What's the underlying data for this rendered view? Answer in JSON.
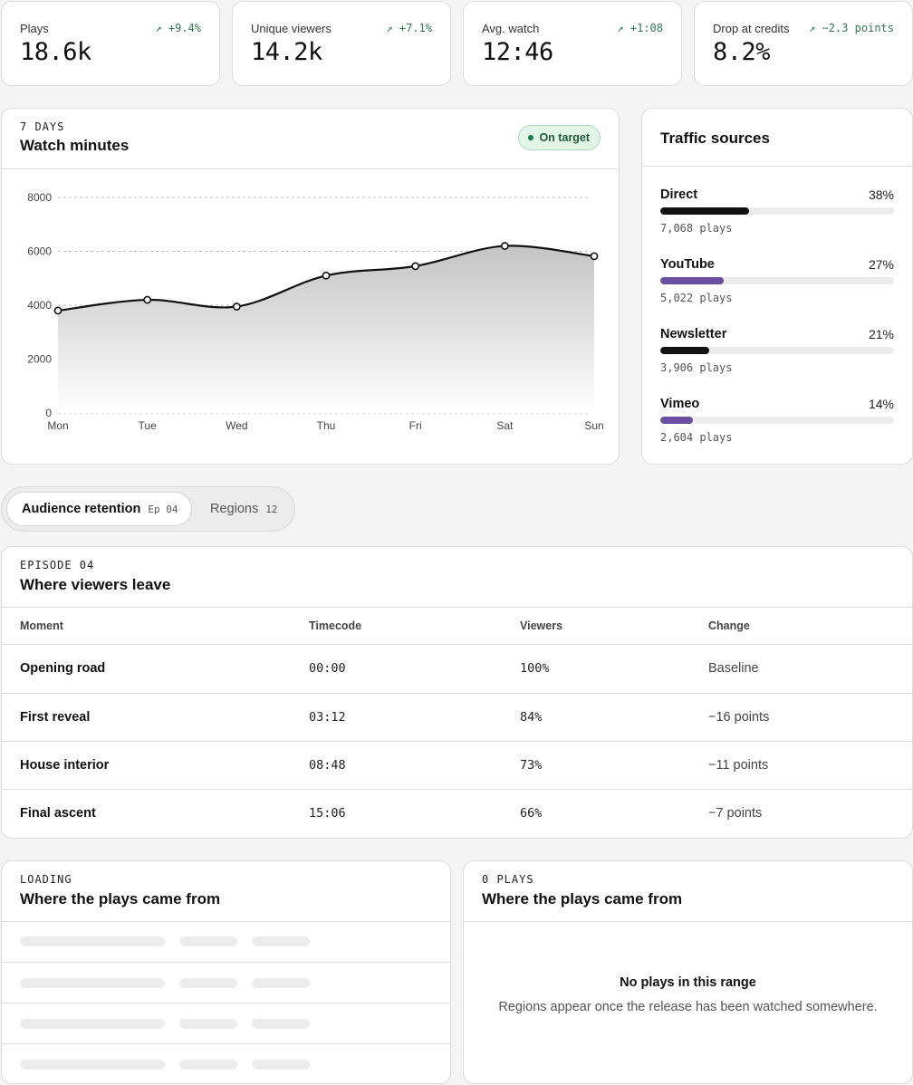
{
  "kpis": [
    {
      "label": "Plays",
      "delta": "↗ +9.4%",
      "value": "18.6k"
    },
    {
      "label": "Unique viewers",
      "delta": "↗ +7.1%",
      "value": "14.2k"
    },
    {
      "label": "Avg. watch",
      "delta": "↗ +1:08",
      "value": "12:46"
    },
    {
      "label": "Drop at credits",
      "delta": "↗ −2.3 points",
      "value": "8.2%"
    }
  ],
  "watch_card": {
    "eyebrow": "7 DAYS",
    "title": "Watch minutes",
    "badge": "On target"
  },
  "chart_data": {
    "type": "area",
    "categories": [
      "Mon",
      "Tue",
      "Wed",
      "Thu",
      "Fri",
      "Sat",
      "Sun"
    ],
    "series": [
      {
        "values": [
          3800,
          4200,
          3950,
          5100,
          5450,
          6200,
          5820
        ]
      }
    ],
    "yticks": [
      "0",
      "2000",
      "4000",
      "6000",
      "8000"
    ],
    "ylim": [
      0,
      8000
    ],
    "grid": true,
    "line_color": "#111111"
  },
  "traffic": {
    "title": "Traffic sources",
    "sources": [
      {
        "name": "Direct",
        "pct": "38%",
        "share": 0.38,
        "plays": "7,068 plays",
        "color": "#111111"
      },
      {
        "name": "YouTube",
        "pct": "27%",
        "share": 0.27,
        "plays": "5,022 plays",
        "color": "#6a4fa3"
      },
      {
        "name": "Newsletter",
        "pct": "21%",
        "share": 0.21,
        "plays": "3,906 plays",
        "color": "#111111"
      },
      {
        "name": "Vimeo",
        "pct": "14%",
        "share": 0.14,
        "plays": "2,604 plays",
        "color": "#6a4fa3"
      }
    ]
  },
  "tabs": {
    "retention_label": "Audience retention",
    "retention_sub": "Ep 04",
    "regions_label": "Regions",
    "regions_sub": "12"
  },
  "retention": {
    "eyebrow": "EPISODE 04",
    "title": "Where viewers leave",
    "columns": [
      "Moment",
      "Timecode",
      "Viewers",
      "Change"
    ],
    "rows": [
      {
        "moment": "Opening road",
        "timecode": "00:00",
        "viewers": "100%",
        "change": "Baseline"
      },
      {
        "moment": "First reveal",
        "timecode": "03:12",
        "viewers": "84%",
        "change": "−16 points"
      },
      {
        "moment": "House interior",
        "timecode": "08:48",
        "viewers": "73%",
        "change": "−11 points"
      },
      {
        "moment": "Final ascent",
        "timecode": "15:06",
        "viewers": "66%",
        "change": "−7 points"
      }
    ]
  },
  "loading_card": {
    "eyebrow": "LOADING",
    "title": "Where the plays came from"
  },
  "empty_card": {
    "eyebrow": "0 PLAYS",
    "title": "Where the plays came from",
    "empty_title": "No plays in this range",
    "empty_sub": "Regions appear once the release has been watched somewhere."
  }
}
